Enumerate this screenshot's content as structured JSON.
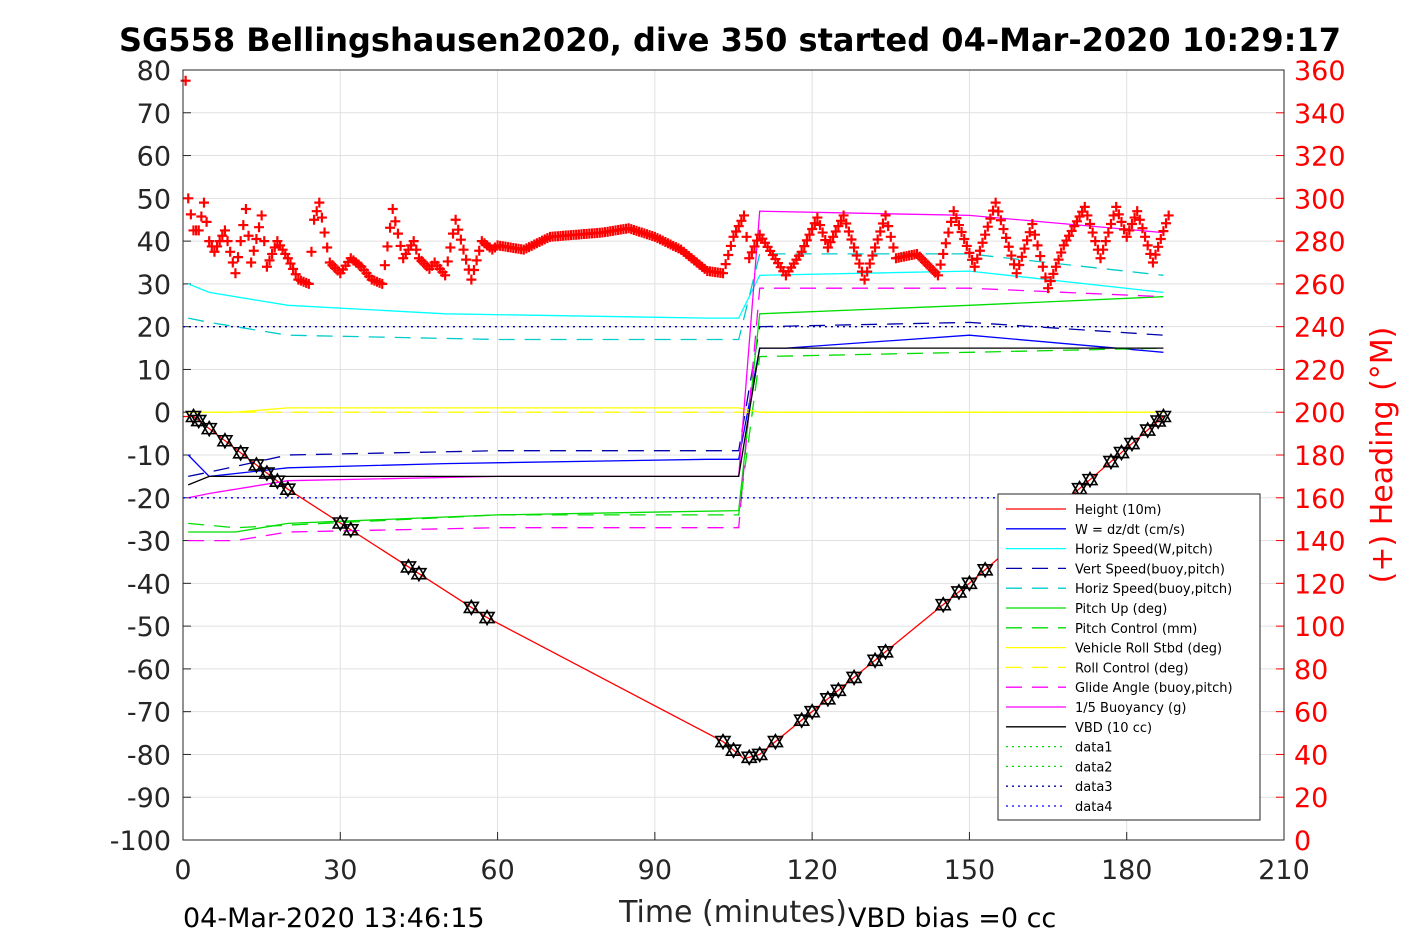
{
  "chart_data": {
    "type": "line",
    "title": "SG558 Bellingshausen2020, dive 350 started 04-Mar-2020 10:29:17",
    "xlabel": "Time (minutes)",
    "ylabel_right": "(+) Heading (°M)",
    "footer_left": "04-Mar-2020 13:46:15",
    "footer_right": "VBD bias =0 cc",
    "xlim": [
      0,
      210
    ],
    "ylim": [
      -100,
      80
    ],
    "ylim_right": [
      0,
      360
    ],
    "x_ticks": [
      "0",
      "30",
      "60",
      "90",
      "120",
      "150",
      "180",
      "210"
    ],
    "y_ticks": [
      "80",
      "70",
      "60",
      "50",
      "40",
      "30",
      "20",
      "10",
      "0",
      "-10",
      "-20",
      "-30",
      "-40",
      "-50",
      "-60",
      "-70",
      "-80",
      "-90",
      "-100"
    ],
    "y_ticks_right": [
      "360",
      "340",
      "320",
      "300",
      "280",
      "260",
      "240",
      "220",
      "200",
      "180",
      "160",
      "140",
      "120",
      "100",
      "80",
      "60",
      "40",
      "20",
      "0"
    ],
    "grid": true,
    "legend_position": "bottom-right",
    "series": [
      {
        "name": "Height (10m)",
        "color": "#ff0000",
        "style": "solid",
        "x": [
          0,
          2,
          20,
          58,
          103,
          107,
          110,
          150,
          187
        ],
        "y": [
          -1,
          -1,
          -18,
          -48,
          -77,
          -81,
          -80,
          -40,
          -1
        ]
      },
      {
        "name": "W = dz/dt (cm/s)",
        "color": "#0000ff",
        "style": "solid",
        "x": [
          1,
          5,
          20,
          50,
          100,
          106,
          110,
          115,
          150,
          187
        ],
        "y": [
          -10,
          -15,
          -13,
          -12,
          -11,
          -11,
          15,
          15,
          18,
          14
        ]
      },
      {
        "name": "Horiz Speed(W,pitch)",
        "color": "#00ffff",
        "style": "solid",
        "x": [
          1,
          5,
          20,
          50,
          100,
          106,
          110,
          150,
          187
        ],
        "y": [
          30,
          28,
          25,
          23,
          22,
          22,
          32,
          33,
          28
        ]
      },
      {
        "name": "Vert Speed(buoy,pitch)",
        "color": "#0000aa",
        "style": "dashed",
        "x": [
          1,
          5,
          20,
          60,
          106,
          110,
          150,
          187
        ],
        "y": [
          -15,
          -14,
          -10,
          -9,
          -9,
          20,
          21,
          18
        ]
      },
      {
        "name": "Horiz Speed(buoy,pitch)",
        "color": "#00cccc",
        "style": "dashed",
        "x": [
          1,
          5,
          20,
          60,
          106,
          110,
          150,
          187
        ],
        "y": [
          22,
          21,
          18,
          17,
          17,
          37,
          37,
          32
        ]
      },
      {
        "name": "Pitch Up (deg)",
        "color": "#00dd00",
        "style": "solid",
        "x": [
          1,
          10,
          20,
          60,
          106,
          110,
          150,
          187
        ],
        "y": [
          -28,
          -28,
          -26,
          -24,
          -23,
          23,
          25,
          27
        ]
      },
      {
        "name": "Pitch Control (mm)",
        "color": "#00dd00",
        "style": "dashed",
        "x": [
          1,
          10,
          60,
          106,
          110,
          150,
          187
        ],
        "y": [
          -26,
          -27,
          -24,
          -24,
          13,
          14,
          15
        ]
      },
      {
        "name": "Vehicle Roll Stbd (deg)",
        "color": "#ffff00",
        "style": "solid",
        "x": [
          1,
          10,
          20,
          60,
          106,
          110,
          150,
          187
        ],
        "y": [
          0,
          0,
          1,
          1,
          1,
          0,
          0,
          0
        ]
      },
      {
        "name": "Roll Control (deg)",
        "color": "#ffff00",
        "style": "dashed",
        "x": [
          1,
          10,
          60,
          106,
          110,
          150,
          187
        ],
        "y": [
          0,
          0,
          0,
          0,
          0,
          0,
          0
        ]
      },
      {
        "name": "Glide Angle (buoy,pitch)",
        "color": "#ff00ff",
        "style": "dashed",
        "x": [
          1,
          10,
          20,
          60,
          106,
          110,
          150,
          187
        ],
        "y": [
          -30,
          -30,
          -28,
          -27,
          -27,
          29,
          29,
          27
        ]
      },
      {
        "name": "1/5 Buoyancy (g)",
        "color": "#ff00ff",
        "style": "solid",
        "x": [
          1,
          5,
          20,
          60,
          106,
          110,
          150,
          187
        ],
        "y": [
          -20,
          -19,
          -16,
          -15,
          -15,
          47,
          46,
          42
        ]
      },
      {
        "name": "VBD (10 cc)",
        "color": "#000000",
        "style": "solid",
        "x": [
          1,
          5,
          20,
          60,
          106,
          110,
          150,
          187
        ],
        "y": [
          -17,
          -15,
          -15,
          -15,
          -15,
          15,
          15,
          15
        ]
      },
      {
        "name": "data1",
        "color": "#00dd00",
        "style": "dotted",
        "x": [],
        "y": []
      },
      {
        "name": "data2",
        "color": "#00dd00",
        "style": "dotted",
        "x": [],
        "y": []
      },
      {
        "name": "data3",
        "color": "#0000aa",
        "style": "dotted",
        "x": [
          0,
          187
        ],
        "y": [
          20,
          20
        ]
      },
      {
        "name": "data4",
        "color": "#0000ff",
        "style": "dotted",
        "x": [
          0,
          187
        ],
        "y": [
          -20,
          -20
        ]
      }
    ],
    "heading": {
      "name": "(+) Heading",
      "color": "#ff0000",
      "marker": "+",
      "axis": "right",
      "x": [
        0.5,
        1,
        2,
        3,
        4,
        5,
        6,
        8,
        10,
        12,
        13,
        15,
        16,
        18,
        20,
        22,
        24,
        25,
        26,
        28,
        30,
        32,
        34,
        36,
        38,
        40,
        42,
        44,
        45,
        47,
        48,
        50,
        52,
        55,
        57,
        59,
        60,
        65,
        70,
        75,
        80,
        85,
        90,
        95,
        100,
        103,
        105,
        107,
        108,
        110,
        115,
        118,
        121,
        123,
        126,
        130,
        134,
        136,
        140,
        144,
        147,
        151,
        155,
        159,
        162,
        165,
        168,
        172,
        175,
        178,
        180,
        182,
        185,
        188
      ],
      "y": [
        355,
        300,
        285,
        285,
        298,
        280,
        275,
        285,
        265,
        295,
        270,
        292,
        268,
        280,
        272,
        262,
        260,
        290,
        298,
        270,
        265,
        272,
        268,
        262,
        260,
        295,
        272,
        280,
        272,
        267,
        270,
        264,
        290,
        262,
        280,
        276,
        278,
        276,
        282,
        283,
        284,
        286,
        282,
        276,
        266,
        265,
        282,
        292,
        272,
        283,
        264,
        275,
        291,
        277,
        292,
        262,
        292,
        272,
        274,
        264,
        294,
        268,
        298,
        265,
        288,
        258,
        278,
        296,
        272,
        296,
        282,
        294,
        270,
        292
      ]
    }
  }
}
